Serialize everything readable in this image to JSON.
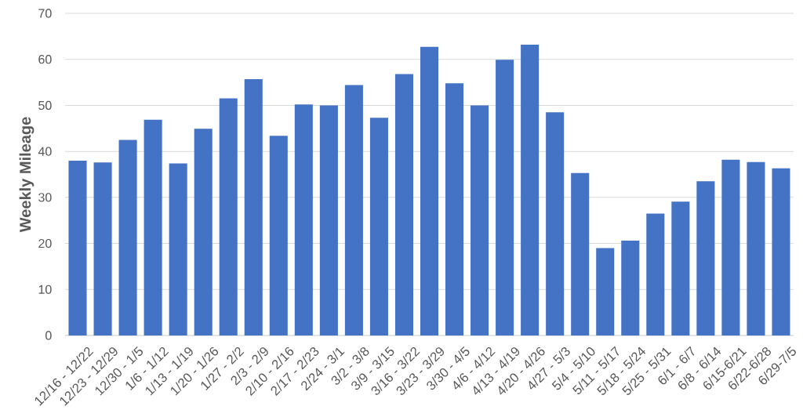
{
  "chart_data": {
    "type": "bar",
    "ylabel": "Weekly Mileage",
    "categories": [
      "12/16 - 12/22",
      "12/23 - 12/29",
      "12/30 - 1/5",
      "1/6 - 1/12",
      "1/13 - 1/19",
      "1/20 - 1/26",
      "1/27 - 2/2",
      "2/3 - 2/9",
      "2/10 - 2/16",
      "2/17 - 2/23",
      "2/24 - 3/1",
      "3/2 - 3/8",
      "3/9 - 3/15",
      "3/16 - 3/22",
      "3/23 - 3/29",
      "3/30 - 4/5",
      "4/6 - 4/12",
      "4/13 - 4/19",
      "4/20 - 4/26",
      "4/27 - 5/3",
      "5/4 - 5/10",
      "5/11 - 5/17",
      "5/18 - 5/24",
      "5/25 - 5/31",
      "6/1 - 6/7",
      "6/8 - 6/14",
      "6/15-6/21",
      "6/22-6/28",
      "6/29-7/5"
    ],
    "values": [
      38.0,
      37.6,
      42.5,
      46.9,
      37.4,
      44.9,
      51.5,
      55.7,
      43.4,
      50.2,
      50.0,
      54.4,
      47.3,
      56.8,
      62.7,
      54.8,
      50.0,
      59.9,
      63.2,
      48.5,
      35.3,
      19.0,
      20.6,
      26.5,
      29.1,
      33.5,
      38.2,
      37.7,
      36.3
    ],
    "color": "#4472c4",
    "ylim": [
      0,
      70
    ],
    "yticks": [
      0,
      10,
      20,
      30,
      40,
      50,
      60,
      70
    ],
    "grid": "y"
  }
}
